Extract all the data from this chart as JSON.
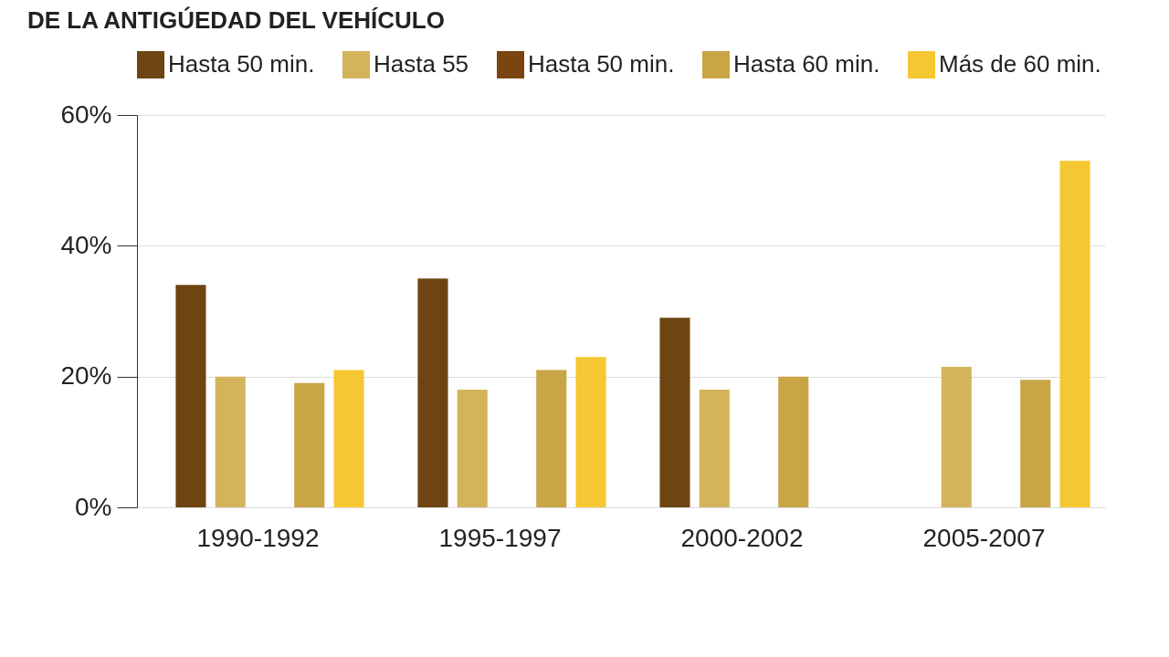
{
  "chart_data": {
    "type": "bar",
    "title": "DE LA ANTIGÚEDAD DEL VEHÍCULO",
    "categories": [
      "1990-1992",
      "1995-1997",
      "2000-2002",
      "2005-2007"
    ],
    "series": [
      {
        "name": "Hasta 50 min.",
        "color": "#6e4512",
        "values": [
          34,
          35,
          29,
          null
        ]
      },
      {
        "name": "Hasta 55",
        "color": "#d4b45a",
        "values": [
          20,
          18,
          18,
          21.5
        ]
      },
      {
        "name": "Hasta 50 min.",
        "color": "#7a4510",
        "values": [
          null,
          null,
          null,
          null
        ]
      },
      {
        "name": "Hasta 60 min.",
        "color": "#c9a545",
        "values": [
          19,
          21,
          20,
          19.5
        ]
      },
      {
        "name": "Más de 60 min.",
        "color": "#f5c733",
        "values": [
          21,
          23,
          null,
          53
        ]
      }
    ],
    "ylim": [
      0,
      60
    ],
    "yticks": [
      {
        "value": 0,
        "label": "0%"
      },
      {
        "value": 20,
        "label": "20%"
      },
      {
        "value": 40,
        "label": "40%"
      },
      {
        "value": 60,
        "label": "60%"
      }
    ],
    "grid": "y",
    "legend": "top"
  }
}
